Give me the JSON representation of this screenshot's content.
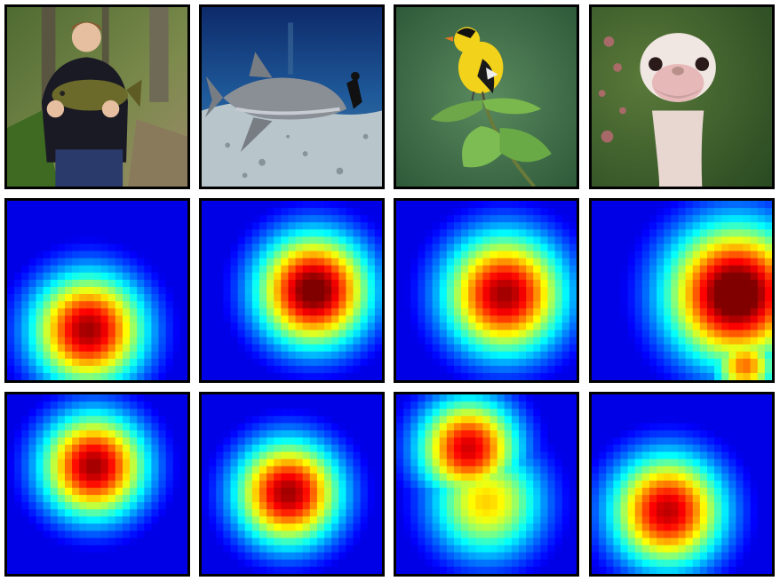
{
  "figure": {
    "rows": [
      {
        "name": "input-images",
        "cells": [
          {
            "subject": "person-holding-fish",
            "kind": "photo"
          },
          {
            "subject": "shark-underwater",
            "kind": "photo"
          },
          {
            "subject": "goldfinch-on-branch",
            "kind": "photo"
          },
          {
            "subject": "ostrich-head",
            "kind": "photo"
          }
        ]
      },
      {
        "name": "heatmaps-method-a",
        "cells": [
          {
            "kind": "heatmap",
            "hotspots": [
              {
                "cx": 0.45,
                "cy": 0.72,
                "r": 0.45,
                "intensity": 0.85
              }
            ]
          },
          {
            "kind": "heatmap",
            "hotspots": [
              {
                "cx": 0.62,
                "cy": 0.5,
                "r": 0.45,
                "intensity": 0.92
              }
            ]
          },
          {
            "kind": "heatmap",
            "hotspots": [
              {
                "cx": 0.6,
                "cy": 0.52,
                "r": 0.48,
                "intensity": 0.85
              }
            ]
          },
          {
            "kind": "heatmap",
            "hotspots": [
              {
                "cx": 0.8,
                "cy": 0.52,
                "r": 0.55,
                "intensity": 0.97
              },
              {
                "cx": 0.85,
                "cy": 0.92,
                "r": 0.25,
                "intensity": 0.65
              }
            ]
          }
        ]
      },
      {
        "name": "heatmaps-method-b",
        "cells": [
          {
            "kind": "heatmap",
            "hotspots": [
              {
                "cx": 0.48,
                "cy": 0.4,
                "r": 0.42,
                "intensity": 0.85
              }
            ]
          },
          {
            "kind": "heatmap",
            "hotspots": [
              {
                "cx": 0.48,
                "cy": 0.55,
                "r": 0.42,
                "intensity": 0.85
              }
            ]
          },
          {
            "kind": "heatmap",
            "hotspots": [
              {
                "cx": 0.4,
                "cy": 0.3,
                "r": 0.4,
                "intensity": 0.8
              },
              {
                "cx": 0.5,
                "cy": 0.6,
                "r": 0.45,
                "intensity": 0.55
              }
            ]
          },
          {
            "kind": "heatmap",
            "hotspots": [
              {
                "cx": 0.42,
                "cy": 0.65,
                "r": 0.45,
                "intensity": 0.82
              }
            ]
          }
        ]
      }
    ]
  },
  "colors": {
    "border": "#000000",
    "background": "#ffffff",
    "jet_low": "#0a0a8f",
    "jet_mid": "#2ee6c8",
    "jet_high": "#c81e0a"
  }
}
